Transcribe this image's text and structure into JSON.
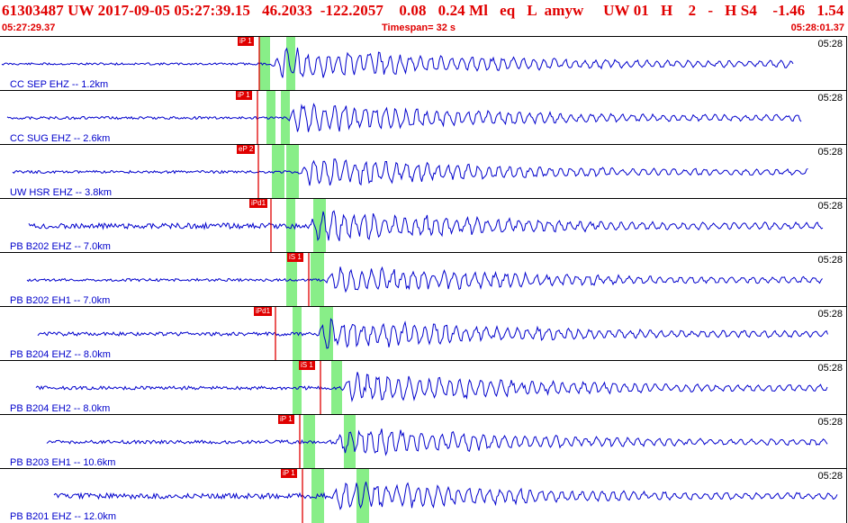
{
  "header": {
    "title_line": "61303487 UW 2017-09-05 05:27:39.15   46.2033  -122.2057    0.08   0.24 Ml   eq   L  amyw     UW 01   H    2   -   H S4    -1.46   1.54",
    "start_time": "05:27:29.37",
    "timespan": "Timespan=  32 s",
    "end_time": "05:28:01.37"
  },
  "colors": {
    "header_text": "#e00000",
    "trace": "#0000cc",
    "pick": "#e00000",
    "window": "#88ee88"
  },
  "traces": [
    {
      "station": "CC SEP EHZ -- 1.2km",
      "time": "05:28",
      "pick": "iP 1"
    },
    {
      "station": "CC SUG EHZ -- 2.6km",
      "time": "05:28",
      "pick": "iP 1"
    },
    {
      "station": "UW HSR EHZ -- 3.8km",
      "time": "05:28",
      "pick": "eP 2"
    },
    {
      "station": "PB B202 EHZ -- 7.0km",
      "time": "05:28",
      "pick": "iPd1"
    },
    {
      "station": "PB B202 EH1 -- 7.0km",
      "time": "05:28",
      "pick": "iS 1"
    },
    {
      "station": "PB B204 EHZ -- 8.0km",
      "time": "05:28",
      "pick": "iPd1"
    },
    {
      "station": "PB B204 EH2 -- 8.0km",
      "time": "05:28",
      "pick": "iS 1"
    },
    {
      "station": "PB B203 EH1 -- 10.6km",
      "time": "05:28",
      "pick": "iP 1"
    },
    {
      "station": "PB B201 EHZ -- 12.0km",
      "time": "05:28",
      "pick": "iP 1"
    }
  ]
}
